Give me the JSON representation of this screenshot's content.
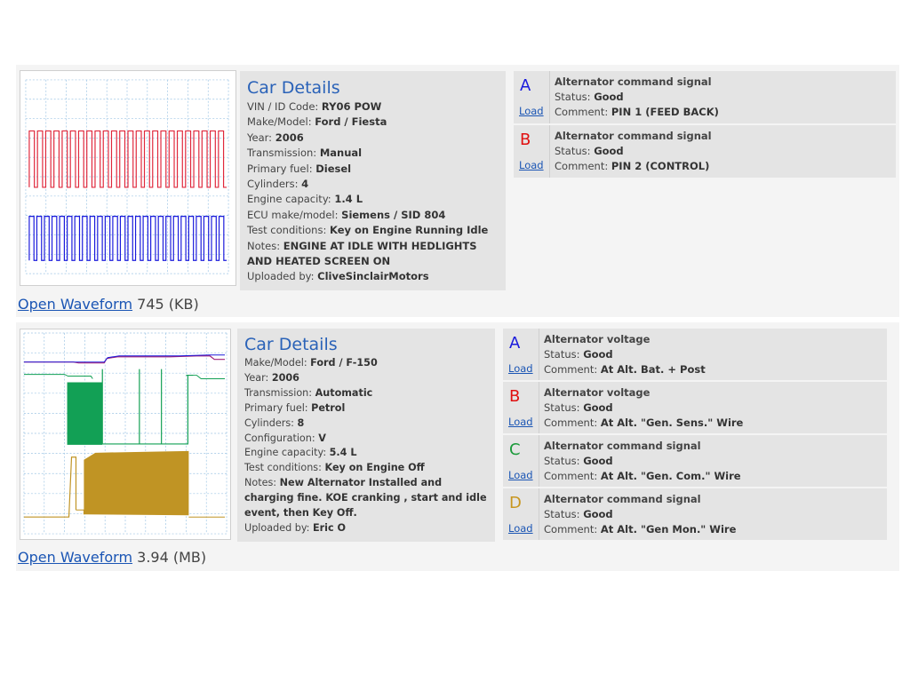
{
  "entries": [
    {
      "details_title": "Car Details",
      "fields": [
        {
          "label": "VIN / ID Code: ",
          "value": "RY06 POW"
        },
        {
          "label": "Make/Model: ",
          "value": "Ford / Fiesta"
        },
        {
          "label": "Year: ",
          "value": "2006"
        },
        {
          "label": "Transmission: ",
          "value": "Manual"
        },
        {
          "label": "Primary fuel: ",
          "value": "Diesel"
        },
        {
          "label": "Cylinders: ",
          "value": "4"
        },
        {
          "label": "Engine capacity: ",
          "value": "1.4 L"
        },
        {
          "label": "ECU make/model: ",
          "value": "Siemens / SID 804"
        },
        {
          "label": "Test conditions: ",
          "value": "Key on Engine Running Idle"
        },
        {
          "label": "Notes: ",
          "value": "ENGINE AT IDLE WITH HEDLIGHTS AND HEATED SCREEN ON"
        },
        {
          "label": "Uploaded by: ",
          "value": "CliveSinclairMotors"
        }
      ],
      "open_link": "Open Waveform",
      "file_size": "745 (KB)",
      "channels": [
        {
          "letter": "A",
          "color": "#1a1adc",
          "load": "Load",
          "title": "Alternator command signal",
          "status_label": "Status: ",
          "status": "Good",
          "comment_label": "Comment: ",
          "comment": "PIN 1 (FEED BACK)"
        },
        {
          "letter": "B",
          "color": "#e01010",
          "load": "Load",
          "title": "Alternator command signal",
          "status_label": "Status: ",
          "status": "Good",
          "comment_label": "Comment: ",
          "comment": "PIN 2 (CONTROL)"
        }
      ]
    },
    {
      "details_title": "Car Details",
      "fields": [
        {
          "label": "Make/Model: ",
          "value": "Ford / F-150"
        },
        {
          "label": "Year: ",
          "value": "2006"
        },
        {
          "label": "Transmission: ",
          "value": "Automatic"
        },
        {
          "label": "Primary fuel: ",
          "value": "Petrol"
        },
        {
          "label": "Cylinders: ",
          "value": "8"
        },
        {
          "label": "Configuration: ",
          "value": "V"
        },
        {
          "label": "Engine capacity: ",
          "value": "5.4 L"
        },
        {
          "label": "Test conditions: ",
          "value": "Key on Engine Off"
        },
        {
          "label": "Notes: ",
          "value": "New Alternator Installed and charging fine. KOE cranking , start and idle event, then Key Off."
        },
        {
          "label": "Uploaded by: ",
          "value": "Eric O"
        }
      ],
      "open_link": "Open Waveform",
      "file_size": "3.94 (MB)",
      "channels": [
        {
          "letter": "A",
          "color": "#1a1adc",
          "load": "Load",
          "title": "Alternator voltage",
          "status_label": "Status: ",
          "status": "Good",
          "comment_label": "Comment: ",
          "comment": "At Alt. Bat. + Post"
        },
        {
          "letter": "B",
          "color": "#e01010",
          "load": "Load",
          "title": "Alternator voltage",
          "status_label": "Status: ",
          "status": "Good",
          "comment_label": "Comment: ",
          "comment": "At Alt. \"Gen. Sens.\" Wire"
        },
        {
          "letter": "C",
          "color": "#1a9a3a",
          "load": "Load",
          "title": "Alternator command signal",
          "status_label": "Status: ",
          "status": "Good",
          "comment_label": "Comment: ",
          "comment": "At Alt. \"Gen. Com.\" Wire"
        },
        {
          "letter": "D",
          "color": "#c8961e",
          "load": "Load",
          "title": "Alternator command signal",
          "status_label": "Status: ",
          "status": "Good",
          "comment_label": "Comment: ",
          "comment": "At Alt. \"Gen Mon.\" Wire"
        }
      ]
    }
  ],
  "waveform_colors": {
    "grid": "#9cc4e4",
    "red": "#e0283c",
    "blue": "#1a1adc",
    "green": "#12a055",
    "gold": "#c09424",
    "purple": "#a0207a"
  }
}
